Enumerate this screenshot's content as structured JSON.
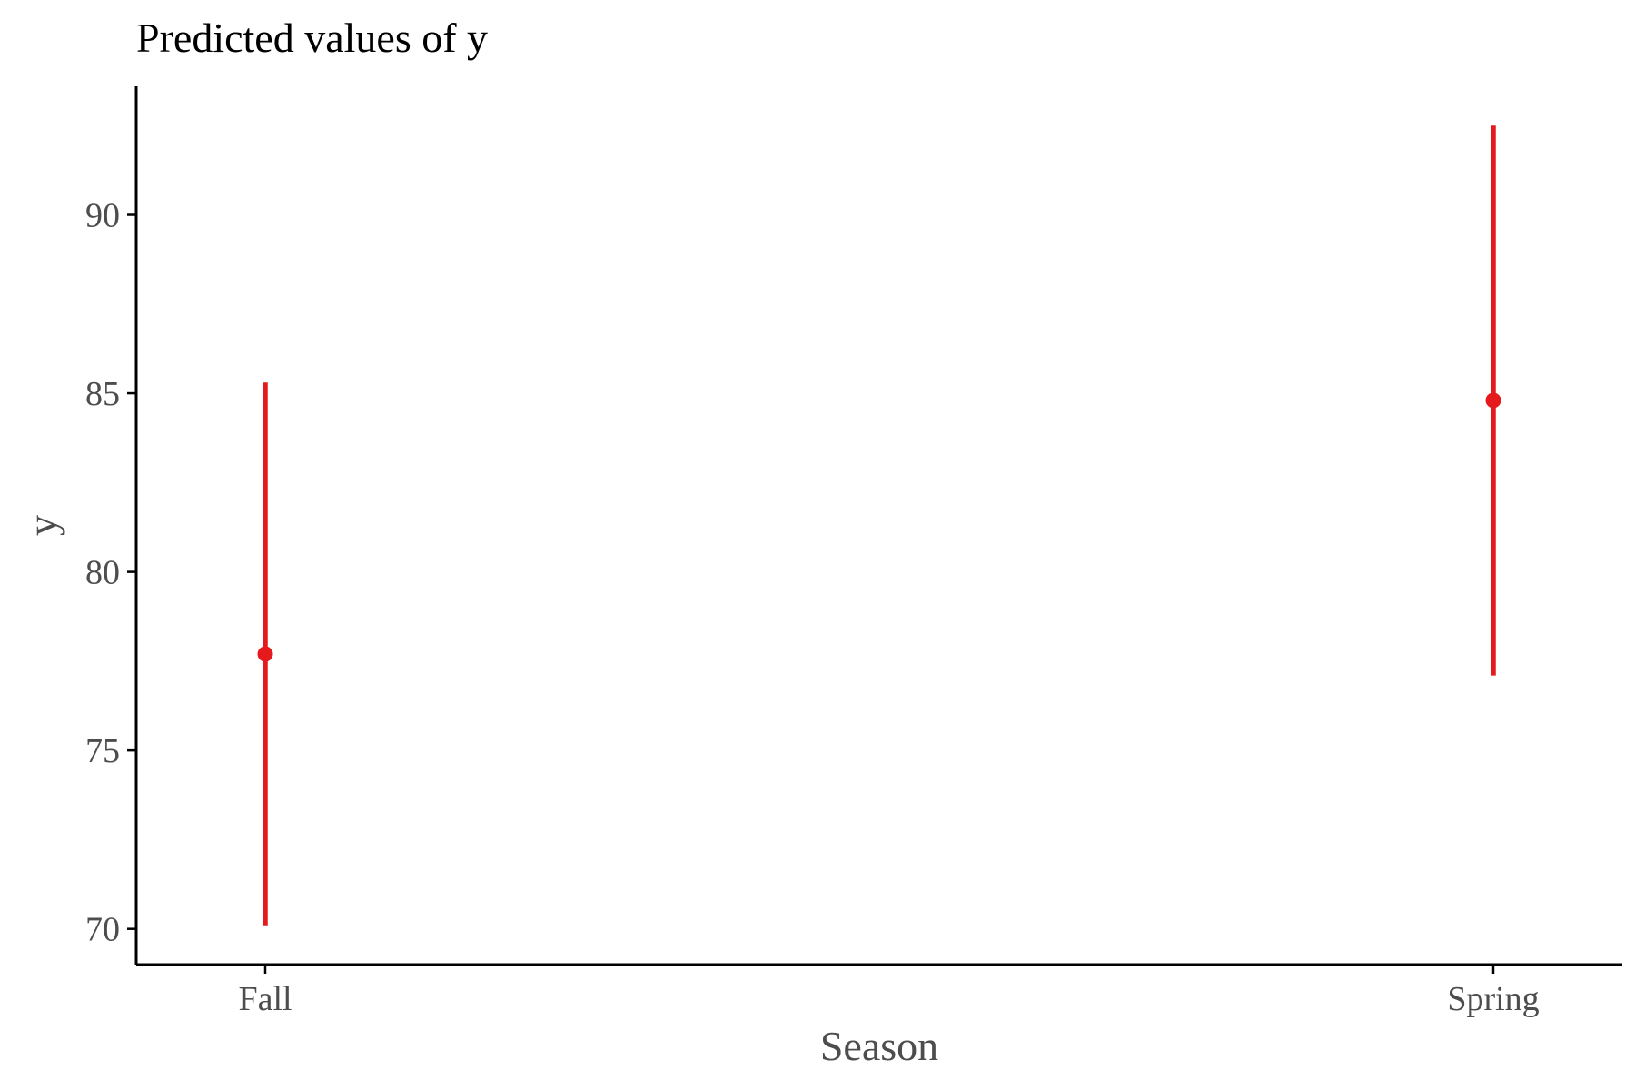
{
  "chart_data": {
    "type": "pointrange",
    "title": "Predicted values of y",
    "xlabel": "Season",
    "ylabel": "y",
    "categories": [
      "Fall",
      "Spring"
    ],
    "series": [
      {
        "values": [
          77.7,
          84.8
        ],
        "lower": [
          70.1,
          77.1
        ],
        "upper": [
          85.3,
          92.5
        ]
      }
    ],
    "yticks": [
      70,
      75,
      80,
      85,
      90
    ],
    "ylim": [
      69.0,
      93.6
    ],
    "grid": false,
    "legend": "none",
    "colors": {
      "point_range": "#e41a1c",
      "axis_line": "#000000",
      "tick_label": "#4d4d4d",
      "title": "#000000"
    }
  }
}
